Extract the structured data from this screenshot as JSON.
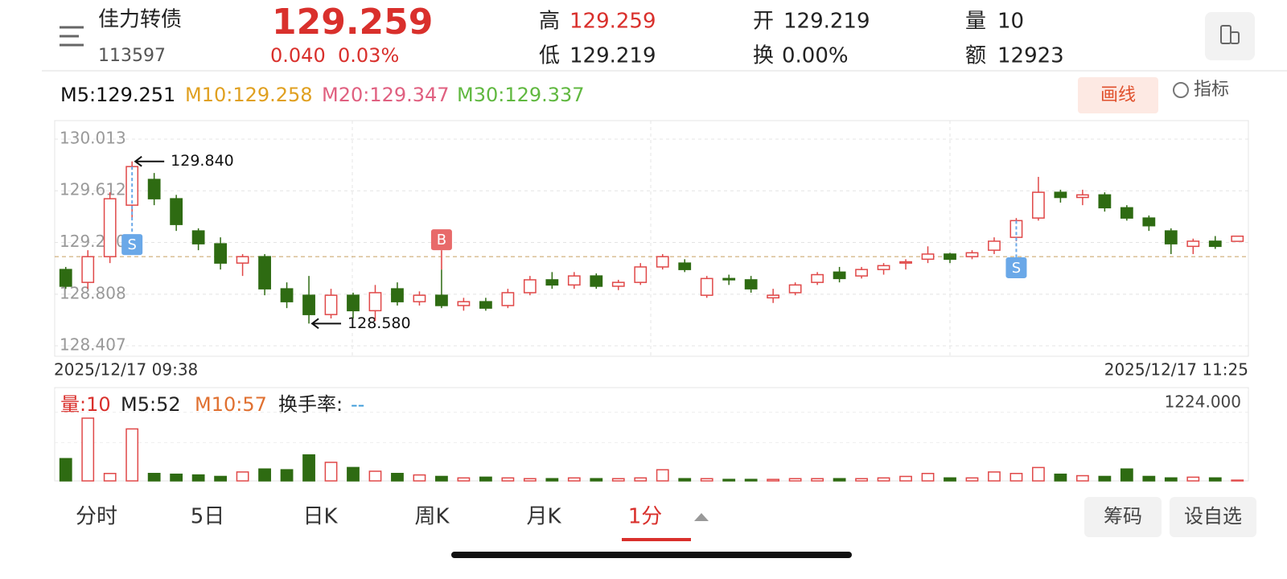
{
  "header": {
    "name": "佳力转债",
    "code": "113597",
    "price": "129.259",
    "change": "0.040",
    "change_pct": "0.03%",
    "stats": [
      {
        "label": "高",
        "value": "129.259"
      },
      {
        "label": "开",
        "value": "129.219"
      },
      {
        "label": "量",
        "value": "10"
      },
      {
        "label": "低",
        "value": "129.219"
      },
      {
        "label": "换",
        "value": "0.00%"
      },
      {
        "label": "额",
        "value": "12923"
      }
    ]
  },
  "ma_row": [
    "M5:129.251",
    "M10:129.258",
    "M20:129.347",
    "M30:129.337"
  ],
  "tools": {
    "draw": "画线",
    "indicator": "指标"
  },
  "chart_data": {
    "type": "candlestick",
    "open": [
      129.0,
      128.9,
      129.1,
      129.5,
      129.7,
      129.55,
      129.3,
      129.2,
      129.05,
      129.1,
      128.85,
      128.8,
      128.65,
      128.8,
      128.68,
      128.85,
      128.75,
      128.8,
      128.72,
      128.75,
      128.72,
      128.82,
      128.92,
      128.88,
      128.95,
      128.87,
      128.9,
      129.02,
      129.05,
      128.8,
      128.93,
      128.92,
      128.78,
      128.82,
      128.9,
      128.98,
      128.95,
      129.0,
      129.05,
      129.08,
      129.12,
      129.1,
      129.15,
      129.25,
      129.4,
      129.6,
      129.56,
      129.58,
      129.48,
      129.4,
      129.3,
      129.18,
      129.22,
      129.219
    ],
    "high": [
      129.02,
      129.15,
      129.6,
      129.84,
      129.75,
      129.58,
      129.32,
      129.25,
      129.12,
      129.12,
      128.9,
      128.95,
      128.85,
      128.82,
      128.88,
      128.9,
      128.83,
      129.0,
      128.78,
      128.78,
      128.85,
      128.95,
      128.98,
      128.98,
      128.97,
      128.92,
      129.05,
      129.12,
      129.08,
      128.95,
      128.96,
      128.95,
      128.85,
      128.9,
      128.98,
      129.02,
      129.02,
      129.05,
      129.08,
      129.18,
      129.13,
      129.15,
      129.25,
      129.4,
      129.72,
      129.62,
      129.62,
      129.6,
      129.5,
      129.42,
      129.32,
      129.24,
      129.26,
      129.259
    ],
    "low": [
      128.85,
      128.85,
      129.05,
      129.4,
      129.5,
      129.3,
      129.15,
      129.0,
      128.95,
      128.8,
      128.7,
      128.58,
      128.62,
      128.62,
      128.6,
      128.72,
      128.72,
      128.7,
      128.68,
      128.68,
      128.7,
      128.8,
      128.85,
      128.85,
      128.85,
      128.84,
      128.88,
      129.0,
      128.98,
      128.78,
      128.88,
      128.82,
      128.74,
      128.8,
      128.88,
      128.9,
      128.93,
      128.96,
      129.0,
      129.05,
      129.05,
      129.08,
      129.12,
      129.22,
      129.38,
      129.52,
      129.5,
      129.45,
      129.38,
      129.3,
      129.12,
      129.12,
      129.16,
      129.219
    ],
    "close": [
      128.87,
      129.1,
      129.55,
      129.8,
      129.55,
      129.35,
      129.2,
      129.05,
      129.1,
      128.85,
      128.75,
      128.65,
      128.8,
      128.68,
      128.82,
      128.75,
      128.8,
      128.72,
      128.75,
      128.7,
      128.82,
      128.92,
      128.88,
      128.95,
      128.87,
      128.9,
      129.02,
      129.1,
      129.0,
      128.93,
      128.92,
      128.85,
      128.8,
      128.88,
      128.96,
      128.93,
      129.0,
      129.03,
      129.06,
      129.12,
      129.08,
      129.13,
      129.22,
      129.38,
      129.6,
      129.56,
      129.58,
      129.48,
      129.4,
      129.34,
      129.2,
      129.22,
      129.18,
      129.259
    ],
    "volume": [
      300,
      845,
      100,
      700,
      100,
      90,
      80,
      60,
      120,
      160,
      150,
      350,
      250,
      180,
      130,
      100,
      80,
      60,
      40,
      50,
      40,
      30,
      30,
      40,
      30,
      30,
      40,
      150,
      30,
      30,
      20,
      20,
      20,
      30,
      30,
      30,
      30,
      40,
      60,
      100,
      40,
      40,
      120,
      100,
      180,
      90,
      70,
      60,
      160,
      60,
      40,
      50,
      40,
      10
    ],
    "signals": [
      null,
      null,
      null,
      "S",
      null,
      null,
      null,
      null,
      null,
      null,
      null,
      null,
      null,
      null,
      null,
      null,
      null,
      "B",
      null,
      null,
      null,
      null,
      null,
      null,
      null,
      null,
      null,
      null,
      null,
      null,
      null,
      null,
      null,
      null,
      null,
      null,
      null,
      null,
      null,
      null,
      null,
      null,
      null,
      "S",
      null,
      null,
      null,
      null,
      null,
      null,
      null,
      null,
      null,
      null
    ],
    "extreme_labels": [
      null,
      null,
      null,
      "129.840",
      null,
      null,
      null,
      null,
      null,
      null,
      null,
      "128.580",
      null,
      null,
      null,
      null,
      null,
      null,
      null,
      null,
      null,
      null,
      null,
      null,
      null,
      null,
      null,
      null,
      null,
      null,
      null,
      null,
      null,
      null,
      null,
      null,
      null,
      null,
      null,
      null,
      null,
      null,
      null,
      null,
      null,
      null,
      null,
      null,
      null,
      null,
      null,
      null,
      null,
      null
    ],
    "ylim": [
      128.326,
      130.157
    ],
    "yticks": [
      130.013,
      129.612,
      {
        "value": 129.21,
        "label": "129.210"
      },
      128.808,
      128.407
    ],
    "ref_line": 129.1,
    "up_color": "#e04848",
    "down_color": "#2e6b12",
    "x_start": "2025/12/17 09:38",
    "x_end": "2025/12/17 11:25",
    "vol_ylim": [
      0,
      1224
    ],
    "vol_tick": {
      "value": 1224,
      "label": "1224.000"
    },
    "vol_row": [
      "量:10",
      "M5:52",
      "M10:57",
      "换手率:",
      "--"
    ]
  },
  "tabs": [
    "分时",
    "5日",
    "日K",
    "周K",
    "月K",
    "1分"
  ],
  "buttons": [
    "筹码",
    "设自选"
  ]
}
